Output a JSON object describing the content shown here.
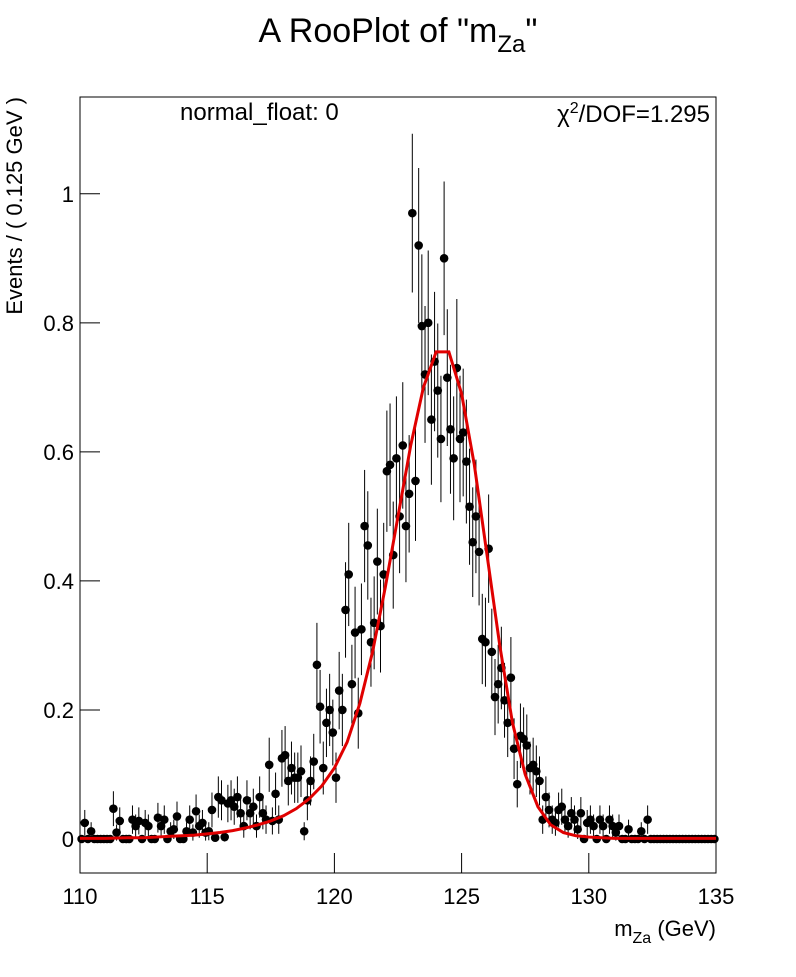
{
  "chart_data": {
    "type": "errorpoints",
    "title": [
      "A RooPlot of \"m",
      "Za",
      "\""
    ],
    "xlabel": [
      "m",
      "Za",
      " (GeV)"
    ],
    "ylabel": "Events / ( 0.125 GeV )",
    "annotation_left": "normal_float: 0",
    "annotation_right": [
      "χ",
      "2",
      "/DOF=1.295"
    ],
    "xlim": [
      110,
      135
    ],
    "xticks": [
      110,
      115,
      120,
      125,
      130,
      135
    ],
    "ylim": [
      -0.0527,
      1.15
    ],
    "yticks": [
      0,
      0.2,
      0.4,
      0.6,
      0.8,
      1
    ],
    "series": [
      {
        "color": "#000000",
        "x": [
          110.0625,
          110.1875,
          110.3125,
          110.4375,
          110.5625,
          110.6875,
          110.8125,
          110.9375,
          111.0625,
          111.1875,
          111.3125,
          111.4375,
          111.5625,
          111.6875,
          111.8125,
          111.9375,
          112.0625,
          112.1875,
          112.3125,
          112.4375,
          112.5625,
          112.6875,
          112.8125,
          112.9375,
          113.0625,
          113.1875,
          113.3125,
          113.4375,
          113.5625,
          113.6875,
          113.8125,
          113.9375,
          114.0625,
          114.1875,
          114.3125,
          114.4375,
          114.5625,
          114.6875,
          114.8125,
          114.9375,
          115.0625,
          115.1875,
          115.3125,
          115.4375,
          115.5625,
          115.6875,
          115.8125,
          115.9375,
          116.0625,
          116.1875,
          116.3125,
          116.4375,
          116.5625,
          116.6875,
          116.8125,
          116.9375,
          117.0625,
          117.1875,
          117.3125,
          117.4375,
          117.5625,
          117.6875,
          117.8125,
          117.9375,
          118.0625,
          118.1875,
          118.3125,
          118.4375,
          118.5625,
          118.6875,
          118.8125,
          118.9375,
          119.0625,
          119.1875,
          119.3125,
          119.4375,
          119.5625,
          119.6875,
          119.8125,
          119.9375,
          120.0625,
          120.1875,
          120.3125,
          120.4375,
          120.5625,
          120.6875,
          120.8125,
          120.9375,
          121.0625,
          121.1875,
          121.3125,
          121.4375,
          121.5625,
          121.6875,
          121.8125,
          121.9375,
          122.0625,
          122.1875,
          122.3125,
          122.4375,
          122.5625,
          122.6875,
          122.8125,
          122.9375,
          123.0625,
          123.1875,
          123.3125,
          123.4375,
          123.5625,
          123.6875,
          123.8125,
          123.9375,
          124.0625,
          124.1875,
          124.3125,
          124.4375,
          124.5625,
          124.6875,
          124.8125,
          124.9375,
          125.0625,
          125.1875,
          125.3125,
          125.4375,
          125.5625,
          125.6875,
          125.8125,
          125.9375,
          126.0625,
          126.1875,
          126.3125,
          126.4375,
          126.5625,
          126.6875,
          126.8125,
          126.9375,
          127.0625,
          127.1875,
          127.3125,
          127.4375,
          127.5625,
          127.6875,
          127.8125,
          127.9375,
          128.0625,
          128.1875,
          128.3125,
          128.4375,
          128.5625,
          128.6875,
          128.8125,
          128.9375,
          129.0625,
          129.1875,
          129.3125,
          129.4375,
          129.5625,
          129.6875,
          129.8125,
          129.9375,
          130.0625,
          130.1875,
          130.3125,
          130.4375,
          130.5625,
          130.6875,
          130.8125,
          130.9375,
          131.0625,
          131.1875,
          131.3125,
          131.4375,
          131.5625,
          131.6875,
          131.8125,
          131.9375,
          132.0625,
          132.1875,
          132.3125,
          132.4375,
          132.5625,
          132.6875,
          132.8125,
          132.9375,
          133.0625,
          133.1875,
          133.3125,
          133.4375,
          133.5625,
          133.6875,
          133.8125,
          133.9375,
          134.0625,
          134.1875,
          134.3125,
          134.4375,
          134.5625,
          134.6875,
          134.8125,
          134.9375
        ],
        "values": [
          0,
          0.025,
          0,
          0.012,
          0,
          0,
          0,
          0,
          0,
          0,
          0.047,
          0.01,
          0.028,
          0,
          0,
          0,
          0.03,
          0.02,
          0.028,
          0,
          0.025,
          0.02,
          0,
          0,
          0.033,
          0.02,
          0.03,
          0,
          0.012,
          0.015,
          0.035,
          0,
          0,
          0.012,
          0.03,
          0.01,
          0.043,
          0.02,
          0.025,
          0.01,
          0.012,
          0.045,
          0.002,
          0.065,
          0.06,
          0.003,
          0.055,
          0.06,
          0.05,
          0.065,
          0.04,
          0.02,
          0.06,
          0.04,
          0.05,
          0.02,
          0.065,
          0.04,
          0.03,
          0.115,
          0.028,
          0.07,
          0.03,
          0.125,
          0.13,
          0.09,
          0.11,
          0.095,
          0.095,
          0.105,
          0.012,
          0.06,
          0.09,
          0.12,
          0.27,
          0.205,
          0.11,
          0.18,
          0.2,
          0.165,
          0.095,
          0.23,
          0.2,
          0.355,
          0.41,
          0.24,
          0.32,
          0.195,
          0.325,
          0.485,
          0.455,
          0.305,
          0.335,
          0.43,
          0.33,
          0.41,
          0.57,
          0.58,
          0.44,
          0.59,
          0.5,
          0.61,
          0.485,
          0.535,
          0.97,
          0.555,
          0.92,
          0.795,
          0.72,
          0.8,
          0.65,
          0.74,
          0.695,
          0.62,
          0.9,
          0.715,
          0.635,
          0.59,
          0.73,
          0.62,
          0.63,
          0.585,
          0.515,
          0.46,
          0.5,
          0.445,
          0.31,
          0.305,
          0.45,
          0.29,
          0.22,
          0.24,
          0.265,
          0.215,
          0.18,
          0.25,
          0.14,
          0.085,
          0.16,
          0.155,
          0.145,
          0.11,
          0.115,
          0.105,
          0.09,
          0.03,
          0.065,
          0.045,
          0.03,
          0.025,
          0.045,
          0.05,
          0.03,
          0.02,
          0.04,
          0.03,
          0.015,
          0.04,
          0,
          0.025,
          0.03,
          0.02,
          0,
          0.03,
          0.02,
          0,
          0.03,
          0.02,
          0.01,
          0.02,
          0,
          0,
          0.015,
          0,
          0,
          0,
          0.012,
          0,
          0.03,
          0,
          0,
          0,
          0,
          0,
          0,
          0,
          0,
          0,
          0,
          0,
          0,
          0,
          0,
          0,
          0,
          0,
          0,
          0,
          0,
          0
        ],
        "errors": [
          0,
          0.02,
          0,
          0.014,
          0,
          0,
          0,
          0,
          0,
          0,
          0.027,
          0.0125,
          0.021,
          0,
          0,
          0,
          0.022,
          0.018,
          0.021,
          0,
          0.02,
          0.018,
          0,
          0,
          0.023,
          0.018,
          0.022,
          0,
          0.014,
          0.015,
          0.023,
          0,
          0,
          0.014,
          0.022,
          0.0125,
          0.026,
          0.018,
          0.02,
          0.0125,
          0.014,
          0.027,
          0.006,
          0.032,
          0.031,
          0.007,
          0.029,
          0.031,
          0.028,
          0.032,
          0.025,
          0.018,
          0.031,
          0.025,
          0.028,
          0.018,
          0.032,
          0.025,
          0.022,
          0.042,
          0.021,
          0.033,
          0.022,
          0.044,
          0.045,
          0.038,
          0.041,
          0.039,
          0.039,
          0.04,
          0.014,
          0.031,
          0.038,
          0.043,
          0.065,
          0.057,
          0.041,
          0.053,
          0.056,
          0.051,
          0.039,
          0.06,
          0.056,
          0.074,
          0.08,
          0.061,
          0.071,
          0.055,
          0.071,
          0.087,
          0.084,
          0.069,
          0.072,
          0.082,
          0.072,
          0.08,
          0.094,
          0.095,
          0.083,
          0.096,
          0.088,
          0.098,
          0.087,
          0.091,
          0.123,
          0.093,
          0.12,
          0.111,
          0.106,
          0.112,
          0.101,
          0.108,
          0.104,
          0.098,
          0.119,
          0.106,
          0.1,
          0.096,
          0.107,
          0.098,
          0.099,
          0.096,
          0.09,
          0.085,
          0.088,
          0.083,
          0.07,
          0.069,
          0.084,
          0.067,
          0.059,
          0.061,
          0.064,
          0.058,
          0.053,
          0.063,
          0.047,
          0.036,
          0.05,
          0.049,
          0.048,
          0.041,
          0.042,
          0.04,
          0.038,
          0.022,
          0.032,
          0.027,
          0.022,
          0.02,
          0.027,
          0.028,
          0.022,
          0.018,
          0.025,
          0.022,
          0.015,
          0.025,
          0,
          0.02,
          0.022,
          0.018,
          0,
          0.022,
          0.018,
          0,
          0.022,
          0.018,
          0.0125,
          0.018,
          0,
          0,
          0.015,
          0,
          0,
          0,
          0.014,
          0,
          0.022,
          0,
          0,
          0,
          0,
          0,
          0,
          0,
          0,
          0,
          0,
          0,
          0,
          0,
          0,
          0,
          0,
          0,
          0,
          0,
          0,
          0
        ]
      }
    ],
    "fit": {
      "color": "#e00000",
      "x": [
        110,
        110.5,
        111,
        111.5,
        112,
        112.5,
        113,
        113.5,
        114,
        114.5,
        115,
        115.5,
        116,
        116.5,
        117,
        117.5,
        118,
        118.5,
        119,
        119.5,
        120,
        120.5,
        121,
        121.5,
        122,
        122.5,
        123,
        123.5,
        124,
        124.5,
        125,
        125.5,
        126,
        126.5,
        127,
        127.5,
        128,
        128.5,
        129,
        129.5,
        130,
        130.5,
        131,
        131.5,
        132,
        132.5,
        133,
        133.5,
        134,
        134.5,
        135
      ],
      "y": [
        0.001,
        0.001,
        0.001,
        0.0015,
        0.002,
        0.002,
        0.003,
        0.004,
        0.005,
        0.006,
        0.008,
        0.01,
        0.013,
        0.017,
        0.022,
        0.028,
        0.036,
        0.047,
        0.062,
        0.082,
        0.11,
        0.15,
        0.21,
        0.29,
        0.39,
        0.5,
        0.61,
        0.7,
        0.755,
        0.755,
        0.69,
        0.58,
        0.44,
        0.3,
        0.18,
        0.1,
        0.05,
        0.022,
        0.01,
        0.005,
        0.003,
        0.002,
        0.001,
        0.001,
        0.001,
        0.001,
        0.001,
        0.001,
        0.001,
        0.001,
        0.001
      ]
    }
  }
}
